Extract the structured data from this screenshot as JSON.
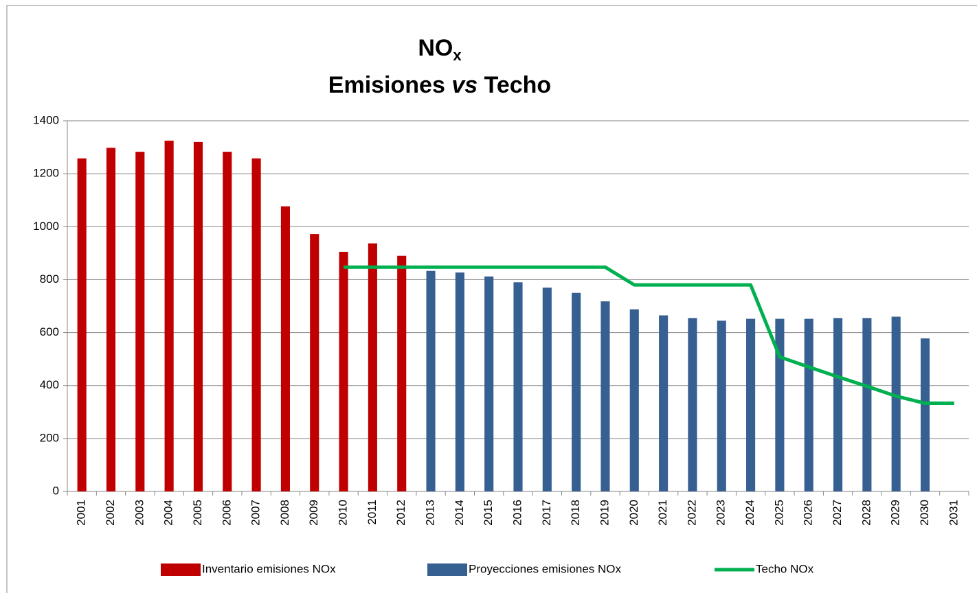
{
  "chart_data": {
    "type": "bar",
    "title": {
      "main": "NO",
      "sub": "x",
      "line2": [
        "Emisiones",
        "vs",
        "Techo"
      ]
    },
    "categories": [
      "2001",
      "2002",
      "2003",
      "2004",
      "2005",
      "2006",
      "2007",
      "2008",
      "2009",
      "2010",
      "2011",
      "2012",
      "2013",
      "2014",
      "2015",
      "2016",
      "2017",
      "2018",
      "2019",
      "2020",
      "2021",
      "2022",
      "2023",
      "2024",
      "2025",
      "2026",
      "2027",
      "2028",
      "2029",
      "2030",
      "2031"
    ],
    "series": [
      {
        "name": "Inventario emisiones NOx",
        "type": "bar",
        "color": "#c00000",
        "values": [
          1258,
          1298,
          1283,
          1325,
          1320,
          1283,
          1258,
          1077,
          972,
          905,
          937,
          890,
          null,
          null,
          null,
          null,
          null,
          null,
          null,
          null,
          null,
          null,
          null,
          null,
          null,
          null,
          null,
          null,
          null,
          null,
          null
        ]
      },
      {
        "name": "Proyecciones emisiones NOx",
        "type": "bar",
        "color": "#376092",
        "values": [
          null,
          null,
          null,
          null,
          null,
          null,
          null,
          null,
          null,
          null,
          null,
          null,
          833,
          827,
          812,
          790,
          770,
          750,
          718,
          688,
          665,
          655,
          645,
          652,
          652,
          652,
          655,
          655,
          660,
          578,
          null
        ]
      },
      {
        "name": "Techo  NOx",
        "type": "line",
        "color": "#00b050",
        "values": [
          null,
          null,
          null,
          null,
          null,
          null,
          null,
          null,
          null,
          847,
          847,
          847,
          847,
          847,
          847,
          847,
          847,
          847,
          847,
          780,
          780,
          780,
          780,
          780,
          508,
          470,
          433,
          397,
          360,
          333,
          333
        ]
      }
    ],
    "ylim": [
      0,
      1400
    ],
    "yticks": [
      0,
      200,
      400,
      600,
      800,
      1000,
      1200,
      1400
    ],
    "grid": true,
    "legend": "bottom"
  }
}
